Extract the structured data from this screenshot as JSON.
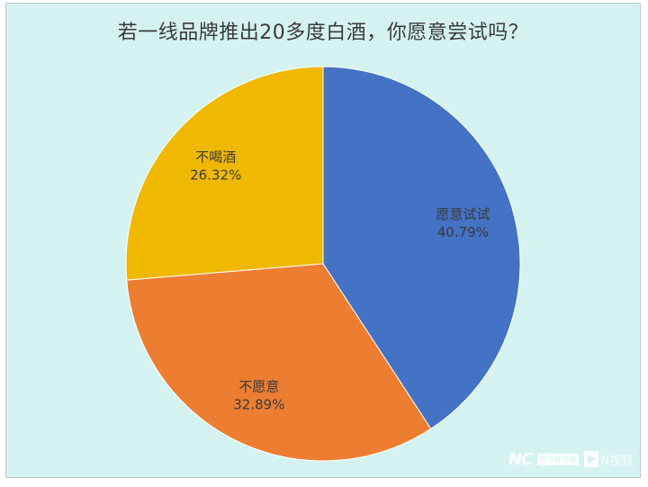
{
  "chart_data": {
    "type": "pie",
    "title": "若一线品牌推出20多度白酒，你愿意尝试吗？",
    "slices": [
      {
        "name": "愿意试试",
        "value": 40.79,
        "label": "40.79%",
        "color": "#4472c4"
      },
      {
        "name": "不愿意",
        "value": 32.89,
        "label": "32.89%",
        "color": "#ed7d31"
      },
      {
        "name": "不喝酒",
        "value": 26.32,
        "label": "26.32%",
        "color": "#f0b800"
      }
    ],
    "start_angle": "12 o'clock",
    "direction": "clockwise",
    "legend": "none"
  },
  "watermark": {
    "brand_mark": "NC",
    "brand_box": "南方都市报",
    "video_text": "N视频"
  }
}
